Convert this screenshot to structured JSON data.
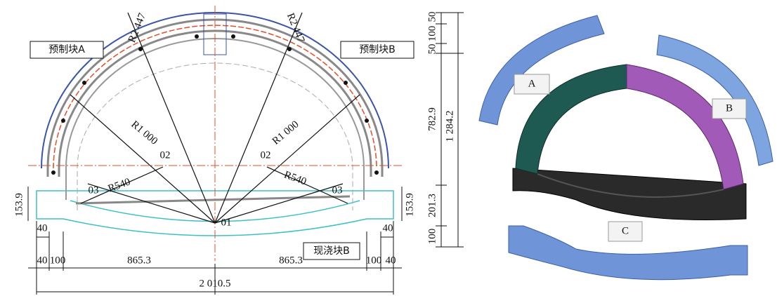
{
  "labels": {
    "block_a": "预制块A",
    "block_b": "预制块B",
    "cast_block_b": "现浇块B"
  },
  "radii": [
    "R2 447",
    "R2 447",
    "R1 000",
    "R1 000",
    "R540",
    "R540"
  ],
  "centers": [
    "01",
    "02",
    "02",
    "03",
    "03"
  ],
  "dimensions": {
    "bottom": [
      "40",
      "100",
      "865.3",
      "865.3",
      "100",
      "40"
    ],
    "bottom_inner": [
      "40",
      "40"
    ],
    "total": "2 010.5",
    "side": [
      "153.9",
      "153.9"
    ],
    "vertical": [
      "50",
      "100",
      "50",
      "782.9",
      "201.3",
      "100"
    ],
    "vertical_total": "1 284.2"
  },
  "model_parts": [
    "A",
    "B",
    "C"
  ]
}
